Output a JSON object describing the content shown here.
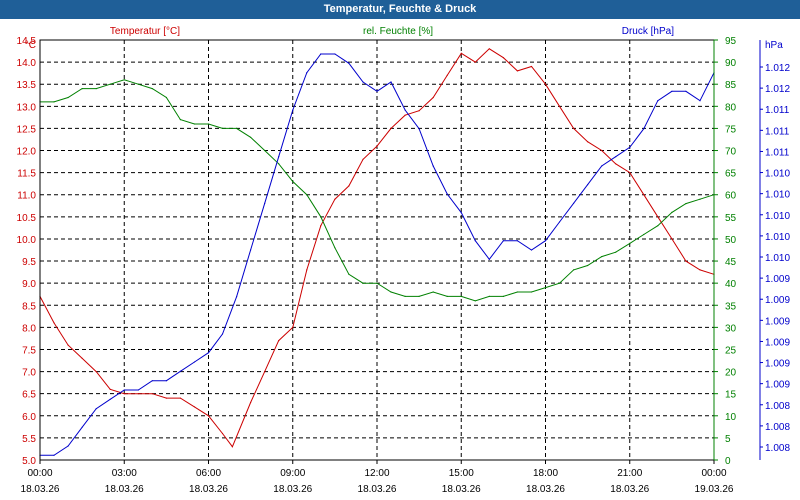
{
  "chart_data": {
    "type": "line",
    "title": "Temperatur, Feuchte & Druck",
    "x_ticks": [
      {
        "time": "00:00",
        "date": "18.03.26"
      },
      {
        "time": "03:00",
        "date": "18.03.26"
      },
      {
        "time": "06:00",
        "date": "18.03.26"
      },
      {
        "time": "09:00",
        "date": "18.03.26"
      },
      {
        "time": "12:00",
        "date": "18.03.26"
      },
      {
        "time": "15:00",
        "date": "18.03.26"
      },
      {
        "time": "18:00",
        "date": "18.03.26"
      },
      {
        "time": "21:00",
        "date": "18.03.26"
      },
      {
        "time": "00:00",
        "date": "19.03.26"
      }
    ],
    "x_range_hours": [
      0,
      24
    ],
    "axes": {
      "left": {
        "unit": "°C",
        "min": 5.0,
        "max": 14.5,
        "ticks": [
          "5.0",
          "5.5",
          "6.0",
          "6.5",
          "7.0",
          "7.5",
          "8.0",
          "8.5",
          "9.0",
          "9.5",
          "10.0",
          "10.5",
          "11.0",
          "11.5",
          "12.0",
          "12.5",
          "13.0",
          "13.5",
          "14.0",
          "14.5"
        ]
      },
      "right1": {
        "unit": "%",
        "min": 0,
        "max": 95,
        "ticks": [
          "0",
          "5",
          "10",
          "15",
          "20",
          "25",
          "30",
          "35",
          "40",
          "45",
          "50",
          "55",
          "60",
          "65",
          "70",
          "75",
          "80",
          "85",
          "90",
          "95"
        ]
      },
      "right2": {
        "unit": "hPa",
        "ticks": [
          "1.008",
          "1.008",
          "1.008",
          "1.009",
          "1.009",
          "1.009",
          "1.009",
          "1.009",
          "1.009",
          "1.010",
          "1.010",
          "1.010",
          "1.010",
          "1.010",
          "1.011",
          "1.011",
          "1.011",
          "1.012",
          "1.012"
        ]
      }
    },
    "grid": true,
    "series": [
      {
        "name": "Temperatur [°C]",
        "axis": "left",
        "color": "#cc0000",
        "x": [
          0,
          0.5,
          1,
          1.5,
          2,
          2.5,
          3,
          3.5,
          4,
          4.5,
          5,
          5.5,
          6,
          6.5,
          6.85,
          7.5,
          8,
          8.5,
          9,
          9.5,
          10,
          10.5,
          11,
          11.5,
          12,
          12.5,
          13,
          13.5,
          14,
          14.5,
          15,
          15.5,
          16,
          16.5,
          17,
          17.5,
          18,
          18.5,
          19,
          19.5,
          20,
          20.5,
          21,
          21.5,
          22,
          22.5,
          23,
          23.5,
          24
        ],
        "values": [
          8.7,
          8.1,
          7.6,
          7.3,
          7.0,
          6.6,
          6.5,
          6.5,
          6.5,
          6.4,
          6.4,
          6.2,
          6.0,
          5.6,
          5.3,
          6.3,
          7.0,
          7.7,
          8.0,
          9.3,
          10.3,
          10.9,
          11.2,
          11.8,
          12.1,
          12.5,
          12.8,
          12.9,
          13.2,
          13.7,
          14.2,
          14.0,
          14.3,
          14.1,
          13.8,
          13.9,
          13.5,
          13.0,
          12.5,
          12.2,
          12.0,
          11.7,
          11.5,
          11.0,
          10.5,
          10.0,
          9.5,
          9.3,
          9.2
        ]
      },
      {
        "name": "rel. Feuchte [%]",
        "axis": "right1",
        "color": "#008000",
        "x": [
          0,
          0.5,
          1,
          1.5,
          2,
          2.5,
          3,
          3.5,
          4,
          4.5,
          5,
          5.5,
          6,
          6.5,
          7,
          7.5,
          8,
          8.5,
          9,
          9.5,
          10,
          10.5,
          11,
          11.5,
          12,
          12.5,
          13,
          13.5,
          14,
          14.5,
          15,
          15.5,
          16,
          16.5,
          17,
          17.5,
          18,
          18.5,
          19,
          19.5,
          20,
          20.5,
          21,
          21.5,
          22,
          22.5,
          23,
          23.5,
          24
        ],
        "values": [
          81,
          81,
          82,
          84,
          84,
          85,
          86,
          85,
          84,
          82,
          77,
          76,
          76,
          75,
          75,
          73,
          70,
          67,
          63,
          60,
          55,
          48,
          42,
          40,
          40,
          38,
          37,
          37,
          38,
          37,
          37,
          36,
          37,
          37,
          38,
          38,
          39,
          40,
          43,
          44,
          46,
          47,
          49,
          51,
          53,
          56,
          58,
          59,
          60
        ]
      },
      {
        "name": "Druck [hPa]",
        "axis": "right2",
        "color": "#0000cc",
        "x": [
          0,
          0.5,
          1,
          1.5,
          2,
          2.5,
          3,
          3.5,
          4,
          4.5,
          5,
          5.5,
          6,
          6.5,
          7,
          7.5,
          8,
          8.5,
          9,
          9.5,
          10,
          10.5,
          11,
          11.5,
          12,
          12.5,
          13,
          13.5,
          14,
          14.5,
          15,
          15.5,
          16,
          16.5,
          17,
          17.5,
          18,
          18.5,
          19,
          19.5,
          20,
          20.5,
          21,
          21.5,
          22,
          22.5,
          23,
          23.5,
          24
        ],
        "values": [
          1.008,
          1.008,
          1.0081,
          1.0083,
          1.0085,
          1.0086,
          1.0087,
          1.0087,
          1.0088,
          1.0088,
          1.0089,
          1.009,
          1.0091,
          1.0093,
          1.0097,
          1.0102,
          1.0107,
          1.0112,
          1.0117,
          1.0121,
          1.0123,
          1.0123,
          1.0122,
          1.012,
          1.0119,
          1.012,
          1.0117,
          1.0115,
          1.0111,
          1.0108,
          1.0106,
          1.0103,
          1.0101,
          1.0103,
          1.0103,
          1.0102,
          1.0103,
          1.0105,
          1.0107,
          1.0109,
          1.0111,
          1.0112,
          1.0113,
          1.0115,
          1.0118,
          1.0119,
          1.0119,
          1.0118,
          1.0121
        ]
      }
    ],
    "legend": "top"
  },
  "labels": {
    "left_unit": "°C",
    "right1_unit": "%",
    "right2_unit": "hPa"
  },
  "colors": {
    "title_bg": "#1f5f98",
    "temperature": "#cc0000",
    "humidity": "#008000",
    "pressure": "#0000cc"
  }
}
